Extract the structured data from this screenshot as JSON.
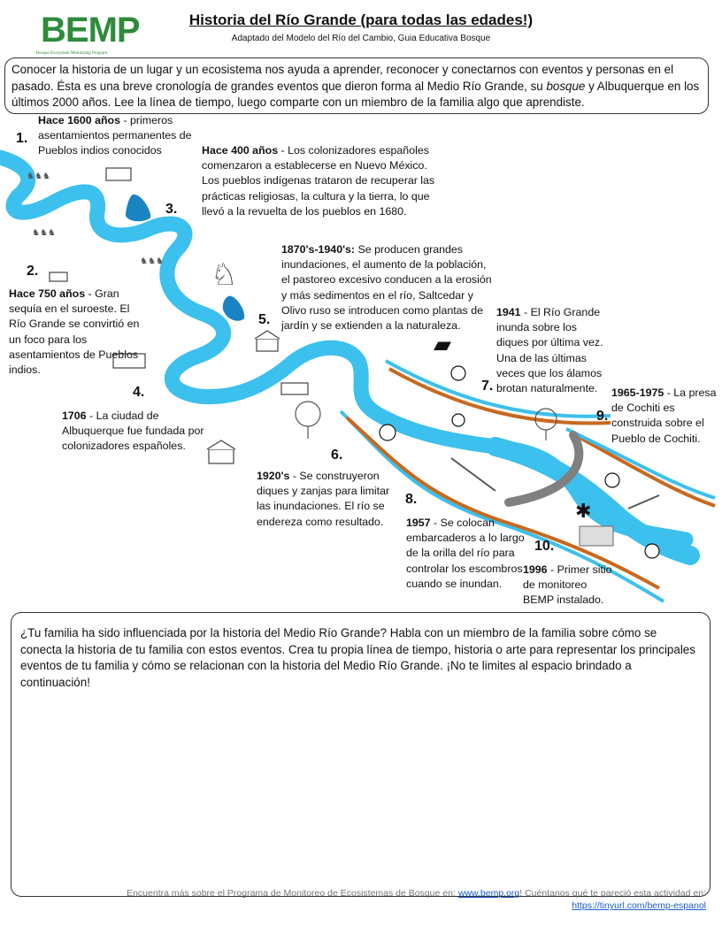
{
  "header": {
    "logo_text": "BEMP",
    "logo_subtext": "Bosque Ecosystem Monitoring Program",
    "title": "Historia del Río Grande (para todas las edades!)",
    "subtitle": "Adaptado del Modelo del Río del Cambio, Guia Educativa Bosque"
  },
  "intro": {
    "part1": "Conocer la historia de un lugar y un ecosistema nos ayuda a aprender, reconocer y conectarnos con eventos y personas en el pasado. Ésta es una breve cronología de grandes eventos que dieron forma al Medio Río Grande, su ",
    "italic": "bosque",
    "part2": " y Albuquerque en los últimos 2000 años. Lee la línea de tiempo, luego comparte con un miembro de la familia algo que aprendiste."
  },
  "events": [
    {
      "number": "1.",
      "date": "Hace 1600 años",
      "text": " - primeros asentamientos permanentes de Pueblos indios conocidos"
    },
    {
      "number": "2.",
      "date": "Hace 750 años",
      "text": " - Gran sequía en el suroeste. El Río Grande se convirtió en un foco para los asentamientos de Pueblos indios."
    },
    {
      "number": "3.",
      "date": "Hace 400 años",
      "text": " - Los colonizadores españoles comenzaron a establecerse en Nuevo México. Los pueblos indígenas trataron de recuperar las prácticas religiosas, la cultura y la tierra, lo que llevó a la revuelta de los pueblos en 1680."
    },
    {
      "number": "4.",
      "date": "1706",
      "text": " - La ciudad de Albuquerque fue fundada por colonizadores españoles."
    },
    {
      "number": "5.",
      "date": "1870's-1940's:",
      "text": " Se producen grandes inundaciones, el aumento de la población, el pastoreo excesivo conducen a la erosión y más sedimentos en el río, Saltcedar y Olivo ruso se introducen como plantas de jardín y se extienden a la naturaleza."
    },
    {
      "number": "6.",
      "date": "1920's",
      "text": " - Se construyeron diques y zanjas para limitar las inundaciones. El río se endereza como resultado."
    },
    {
      "number": "7.",
      "date": "1941",
      "text": " - El Río Grande inunda sobre los diques por última vez. Una de las últimas veces que los álamos brotan naturalmente."
    },
    {
      "number": "8.",
      "date": "1957",
      "text": " - Se colocan embarcaderos a lo largo de la orilla del río para controlar los escombros cuando se inundan."
    },
    {
      "number": "9.",
      "date": "1965-1975",
      "text": " -  La presa de Cochiti es construida sobre el Pueblo de Cochiti."
    },
    {
      "number": "10.",
      "date": "1996",
      "text": " - Primer sitio de monitoreo BEMP instalado."
    }
  ],
  "prompt": "¿Tu familia ha sido influenciada por la historia del Medio Río Grande? Habla con un miembro de la familia sobre cómo se conecta la historia de tu familia con estos eventos. Crea tu propia línea de tiempo, historia o arte para representar los principales eventos de tu familia y cómo se relacionan con la historia del Medio Río Grande. ¡No te limites al espacio brindado a continuación!",
  "footer": {
    "text1": "Encuentra más sobre el Programa de Monitoreo de Ecosistemas de Bosque en: ",
    "link1": "www.bemp.org",
    "text2": "! Cuéntanos qué te pareció esta actividad en:",
    "link2": "https://tinyurl.com/bemp-espanol"
  },
  "colors": {
    "river": "#3cc0ee",
    "levee": "#c8681e",
    "dam": "#808080",
    "logo_green": "#2e8b3a"
  }
}
